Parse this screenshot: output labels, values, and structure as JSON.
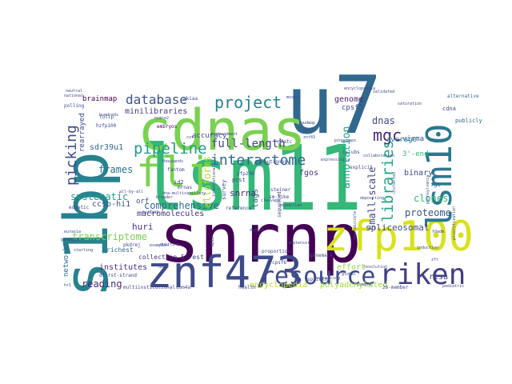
{
  "cloud": {
    "words": [
      {
        "text": "lsm11",
        "color": "#35b779"
      },
      {
        "text": "u7",
        "color": "#31688e"
      },
      {
        "text": "snrnp",
        "color": "#440154"
      },
      {
        "text": "s1bp",
        "color": "#26828e"
      },
      {
        "text": "cdnas",
        "color": "#7ad151"
      },
      {
        "text": "znf473",
        "color": "#3e4a89"
      },
      {
        "text": "zfp100",
        "color": "#d8e219"
      },
      {
        "text": "flj",
        "color": "#7ad151"
      },
      {
        "text": "lsm10",
        "color": "#2a788e"
      },
      {
        "text": "riken",
        "color": "#433e85"
      },
      {
        "text": "resource",
        "color": "#3e4a89"
      },
      {
        "text": "interactome",
        "color": "#31688e"
      },
      {
        "text": "project",
        "color": "#26828e"
      },
      {
        "text": "pipeline",
        "color": "#1f9e89"
      },
      {
        "text": "database",
        "color": "#3b528b"
      },
      {
        "text": "libraries",
        "color": "#22a884"
      },
      {
        "text": "picking",
        "color": "#3e4a89"
      },
      {
        "text": "mgc",
        "color": "#482878"
      },
      {
        "text": "full-length",
        "color": "#414487"
      },
      {
        "text": "transcriptome",
        "color": "#7ad151"
      },
      {
        "text": "frames",
        "color": "#2c728e"
      },
      {
        "text": "systematic",
        "color": "#1f9e89"
      },
      {
        "text": "comprehensive",
        "color": "#31688e"
      },
      {
        "text": "proteome",
        "color": "#3b528b"
      },
      {
        "text": "annotation",
        "color": "#22a884"
      },
      {
        "text": "small-scale",
        "color": "#414487"
      },
      {
        "text": "clones",
        "color": "#35b779"
      },
      {
        "text": "dnas",
        "color": "#3e4a89"
      },
      {
        "text": "reading",
        "color": "#482878"
      },
      {
        "text": "alloforms",
        "color": "#b5de2b"
      },
      {
        "text": "encyclopedia",
        "color": "#bddf26"
      },
      {
        "text": "polyadenylated",
        "color": "#a0da39"
      },
      {
        "text": "huri",
        "color": "#46327e"
      },
      {
        "text": "spliceosomal",
        "color": "#3e4a89"
      },
      {
        "text": "snrna",
        "color": "#472d7b"
      },
      {
        "text": "macromolecules",
        "color": "#46327e"
      },
      {
        "text": "brainmap",
        "color": "#440154"
      },
      {
        "text": "minilibraries",
        "color": "#443983"
      },
      {
        "text": "ccsb-hi1",
        "color": "#3b528b"
      },
      {
        "text": "sdr39u1",
        "color": "#31688e"
      },
      {
        "text": "rearrayed",
        "color": "#3e4a89"
      },
      {
        "text": "networks",
        "color": "#31688e"
      },
      {
        "text": "institutes",
        "color": "#46327e"
      },
      {
        "text": "richest",
        "color": "#31688e"
      },
      {
        "text": "collection 5'-est",
        "color": "#443983"
      },
      {
        "text": "accuracy",
        "color": "#3b528b"
      },
      {
        "text": "genome",
        "color": "#481a6c"
      },
      {
        "text": "tags",
        "color": "#31688e"
      },
      {
        "text": "binary",
        "color": "#3e4a89"
      },
      {
        "text": "average",
        "color": "#26828e"
      },
      {
        "text": "virma",
        "color": "#3b528b"
      },
      {
        "text": "cpsf5",
        "color": "#3e4a89"
      },
      {
        "text": "3'-end",
        "color": "#35b779"
      },
      {
        "text": "fgos",
        "color": "#46327e"
      },
      {
        "text": "effort",
        "color": "#8fd744"
      },
      {
        "text": "risa",
        "color": "#3e4a89"
      },
      {
        "text": "orf",
        "color": "#3e4a89"
      },
      {
        "text": "multiinstitutional",
        "color": "#3e4a89"
      },
      {
        "text": "health",
        "color": "#3e4a89"
      },
      {
        "text": "mrnas",
        "color": "#3e4a89"
      },
      {
        "text": "26-member",
        "color": "#3e4a89"
      },
      {
        "text": "publicly",
        "color": "#31688e"
      },
      {
        "text": "alternative",
        "color": "#31688e"
      },
      {
        "text": "embryos",
        "color": "#440154"
      },
      {
        "text": "tulip",
        "color": "#3e4a89"
      },
      {
        "text": "hzfp100",
        "color": "#3e4a89"
      },
      {
        "text": "fgo",
        "color": "#31688e"
      },
      {
        "text": "pcst",
        "color": "#3e4a89"
      },
      {
        "text": "survey",
        "color": "#3e4a89"
      },
      {
        "text": "splicing",
        "color": "#3e4a89"
      },
      {
        "text": "genemark",
        "color": "#3e4a89"
      },
      {
        "text": "reference",
        "color": "#3e4a89"
      },
      {
        "text": "proportion",
        "color": "#3e4a89"
      },
      {
        "text": "sequenced",
        "color": "#3e4a89"
      },
      {
        "text": "sm-like",
        "color": "#3e4a89"
      },
      {
        "text": "steiner",
        "color": "#3e4a89"
      },
      {
        "text": "polling",
        "color": "#3e4a89"
      },
      {
        "text": "edgetic",
        "color": "#3e4a89"
      },
      {
        "text": "pkdrej",
        "color": "#3e4a89"
      },
      {
        "text": "all-by-all",
        "color": "#3e4a89"
      },
      {
        "text": "quitting",
        "color": "#3e4a89"
      },
      {
        "text": "evolutionary",
        "color": "#3e4a89"
      },
      {
        "text": "id2",
        "color": "#3e4a89"
      },
      {
        "text": "fantom",
        "color": "#3e4a89"
      },
      {
        "text": "zfp230",
        "color": "#3e4a89"
      },
      {
        "text": "cpsf6",
        "color": "#3e4a89"
      },
      {
        "text": "cdna",
        "color": "#3e4a89"
      },
      {
        "text": "nsmce2",
        "color": "#3e4a89"
      },
      {
        "text": "cpsf7",
        "color": "#3e4a89"
      },
      {
        "text": "uncharted",
        "color": "#3e4a89"
      },
      {
        "text": "prioritization",
        "color": "#3e4a89"
      },
      {
        "text": "gudmap",
        "color": "#3e4a89"
      },
      {
        "text": "znf43",
        "color": "#3e4a89"
      },
      {
        "text": "cclubs",
        "color": "#3e4a89"
      },
      {
        "text": "explicit",
        "color": "#3e4a89"
      },
      {
        "text": "pingemaps",
        "color": "#3e4a89"
      },
      {
        "text": "eurasia",
        "color": "#3e4a89"
      },
      {
        "text": "dfirst-strand",
        "color": "#3e4a89"
      },
      {
        "text": "zfr",
        "color": "#3e4a89"
      },
      {
        "text": "hr1",
        "color": "#3e4a89"
      },
      {
        "text": "broader",
        "color": "#3e4a89"
      },
      {
        "text": "depositing",
        "color": "#3e4a89"
      },
      {
        "text": "resolution",
        "color": "#3e4a89"
      },
      {
        "text": "saturation",
        "color": "#3e4a89"
      },
      {
        "text": "neutral",
        "color": "#3e4a89"
      },
      {
        "text": "expressivity",
        "color": "#3e4a89"
      },
      {
        "text": "international",
        "color": "#3e4a89"
      },
      {
        "text": "akiaa",
        "color": "#3e4a89"
      },
      {
        "text": "bombardment",
        "color": "#3e4a89"
      },
      {
        "text": "nfatc",
        "color": "#3e4a89"
      },
      {
        "text": "pennsylvania",
        "color": "#3e4a89"
      },
      {
        "text": "thousands",
        "color": "#3e4a89"
      },
      {
        "text": "national",
        "color": "#3e4a89"
      },
      {
        "text": "hundreds",
        "color": "#3e4a89"
      },
      {
        "text": "examples",
        "color": "#3e4a89"
      },
      {
        "text": "mosaic",
        "color": "#3e4a89"
      },
      {
        "text": "cleavage",
        "color": "#3e4a89"
      },
      {
        "text": "reproducible",
        "color": "#3e4a89"
      },
      {
        "text": "fdadm",
        "color": "#3e4a89"
      },
      {
        "text": "dnatensor",
        "color": "#3e4a89"
      },
      {
        "text": "sequencing",
        "color": "#3e4a89"
      },
      {
        "text": "mendelian",
        "color": "#3e4a89"
      },
      {
        "text": "mp1a",
        "color": "#3e4a89"
      },
      {
        "text": "ddm",
        "color": "#3e4a89"
      },
      {
        "text": "starting",
        "color": "#3e4a89"
      },
      {
        "text": "genespot",
        "color": "#3e4a89"
      },
      {
        "text": "encyclopaedia",
        "color": "#3e4a89"
      },
      {
        "text": "dnatal",
        "color": "#3e4a89"
      },
      {
        "text": "pediatric",
        "color": "#3e4a89"
      },
      {
        "text": "collaboration",
        "color": "#3e4a89"
      },
      {
        "text": "validated",
        "color": "#3e4a89"
      },
      {
        "text": "induction",
        "color": "#3e4a89"
      },
      {
        "text": "global",
        "color": "#3e4a89"
      },
      {
        "text": "iswmid",
        "color": "#3e4a89"
      },
      {
        "text": "dom4a",
        "color": "#3e4a89"
      },
      {
        "text": "cut",
        "color": "#3e4a89"
      },
      {
        "text": "dna-multicapillary",
        "color": "#3e4a89"
      },
      {
        "text": "evcbus",
        "color": "#3e4a89"
      },
      {
        "text": "browse",
        "color": "#3e4a89"
      },
      {
        "text": "orf",
        "color": "#3e4a89"
      }
    ]
  }
}
